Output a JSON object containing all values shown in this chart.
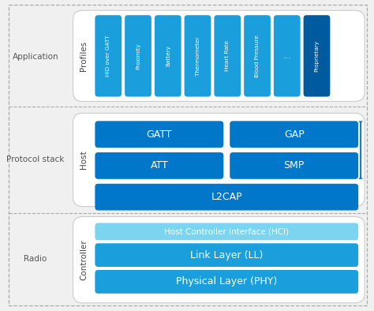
{
  "bg_color": "#f0f0f0",
  "white": "#ffffff",
  "blue_dark": "#0077c8",
  "blue_medium": "#1a9fdc",
  "blue_light": "#7dd4f0",
  "blue_proprietary": "#005a9e",
  "text_dark": "#444444",
  "text_label": "#555555",
  "profiles_labels": [
    "HID over GATT",
    "Proximity",
    "Battery",
    "Thermometer",
    "Heart Rate",
    "Blood Pressure",
    "...",
    "Proprietary"
  ],
  "host_labels": [
    "GATT",
    "GAP",
    "ATT",
    "SMP",
    "L2CAP"
  ],
  "controller_labels": [
    "Host Controller Interface (HCI)",
    "Link Layer (LL)",
    "Physical Layer (PHY)"
  ],
  "section_labels": [
    "Application",
    "Protocol stack",
    "Radio"
  ],
  "vertical_labels": [
    "Profiles",
    "Host",
    "Controller"
  ]
}
